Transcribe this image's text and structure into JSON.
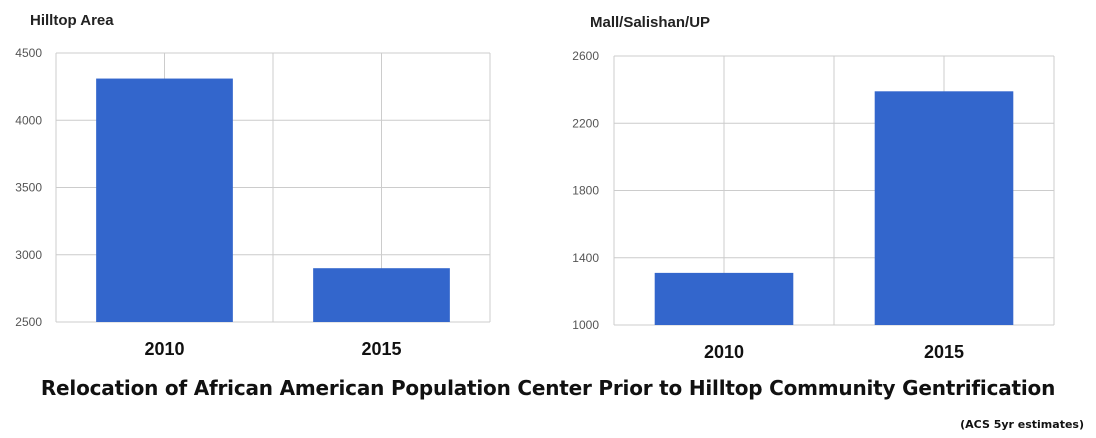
{
  "figure": {
    "title": "Relocation of African American Population Center Prior to Hilltop Community Gentrification",
    "note": "(ACS 5yr estimates)"
  },
  "chart_data": [
    {
      "type": "bar",
      "title": "Hilltop Area",
      "categories": [
        "2010",
        "2015"
      ],
      "values": [
        4310,
        2900
      ],
      "ylim": [
        2500,
        4500
      ],
      "yticks": [
        2500,
        3000,
        3500,
        4000,
        4500
      ],
      "xlabel": "",
      "ylabel": "",
      "grid": true,
      "color": "#3366cc"
    },
    {
      "type": "bar",
      "title": "Mall/Salishan/UP",
      "categories": [
        "2010",
        "2015"
      ],
      "values": [
        1310,
        2390
      ],
      "ylim": [
        1000,
        2600
      ],
      "yticks": [
        1000,
        1400,
        1800,
        2200,
        2600
      ],
      "xlabel": "",
      "ylabel": "",
      "grid": true,
      "color": "#3366cc"
    }
  ]
}
